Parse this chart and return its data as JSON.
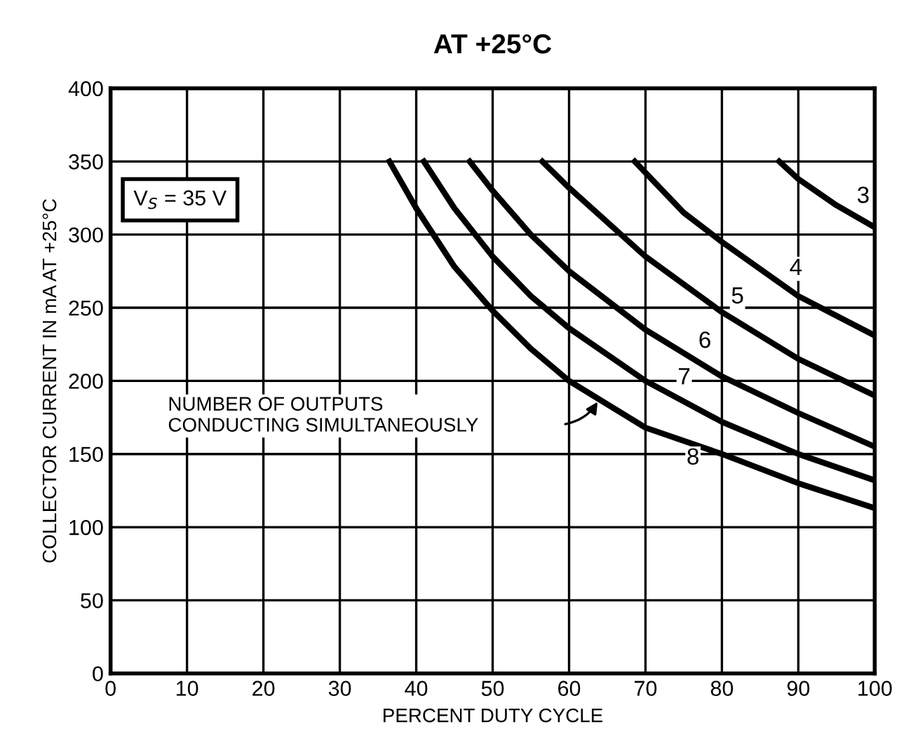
{
  "chart_data": {
    "type": "line",
    "title": "AT +25°C",
    "xlabel": "PERCENT DUTY CYCLE",
    "ylabel": "COLLECTOR CURRENT IN mA AT +25°C",
    "xlim": [
      0,
      100
    ],
    "xticks": [
      0,
      10,
      20,
      30,
      40,
      50,
      60,
      70,
      80,
      90,
      100
    ],
    "ylim": [
      0,
      400
    ],
    "yticks": [
      0,
      50,
      100,
      150,
      200,
      250,
      300,
      350,
      400
    ],
    "grid": true,
    "legend": false,
    "marker": "none",
    "line_style": "solid",
    "annotations": [
      "V$_{S}$ = 35 V",
      "NUMBER OF OUTPUTS\nCONDUCTING SIMULTANEOUSLY"
    ],
    "series": [
      {
        "name": "3",
        "color": "#000000",
        "x": [
          87.5,
          90,
          95,
          100
        ],
        "values": [
          350,
          338,
          320,
          305
        ]
      },
      {
        "name": "4",
        "color": "#000000",
        "x": [
          68.6,
          75,
          80,
          90,
          100
        ],
        "values": [
          350,
          315,
          295,
          258,
          231
        ]
      },
      {
        "name": "5",
        "color": "#000000",
        "x": [
          56.5,
          60,
          70,
          80,
          90,
          100
        ],
        "values": [
          350,
          332,
          285,
          247,
          215,
          190
        ]
      },
      {
        "name": "6",
        "color": "#000000",
        "x": [
          47,
          50,
          55,
          60,
          70,
          80,
          90,
          100
        ],
        "values": [
          350,
          330,
          300,
          275,
          235,
          203,
          178,
          155
        ]
      },
      {
        "name": "7",
        "color": "#000000",
        "x": [
          41,
          45,
          50,
          55,
          60,
          70,
          80,
          90,
          100
        ],
        "values": [
          350,
          318,
          285,
          258,
          236,
          200,
          172,
          150,
          132
        ]
      },
      {
        "name": "8",
        "color": "#000000",
        "x": [
          36.5,
          40,
          45,
          50,
          55,
          60,
          70,
          80,
          90,
          100
        ],
        "values": [
          350,
          318,
          278,
          248,
          222,
          200,
          168,
          150,
          130,
          113
        ]
      }
    ]
  }
}
